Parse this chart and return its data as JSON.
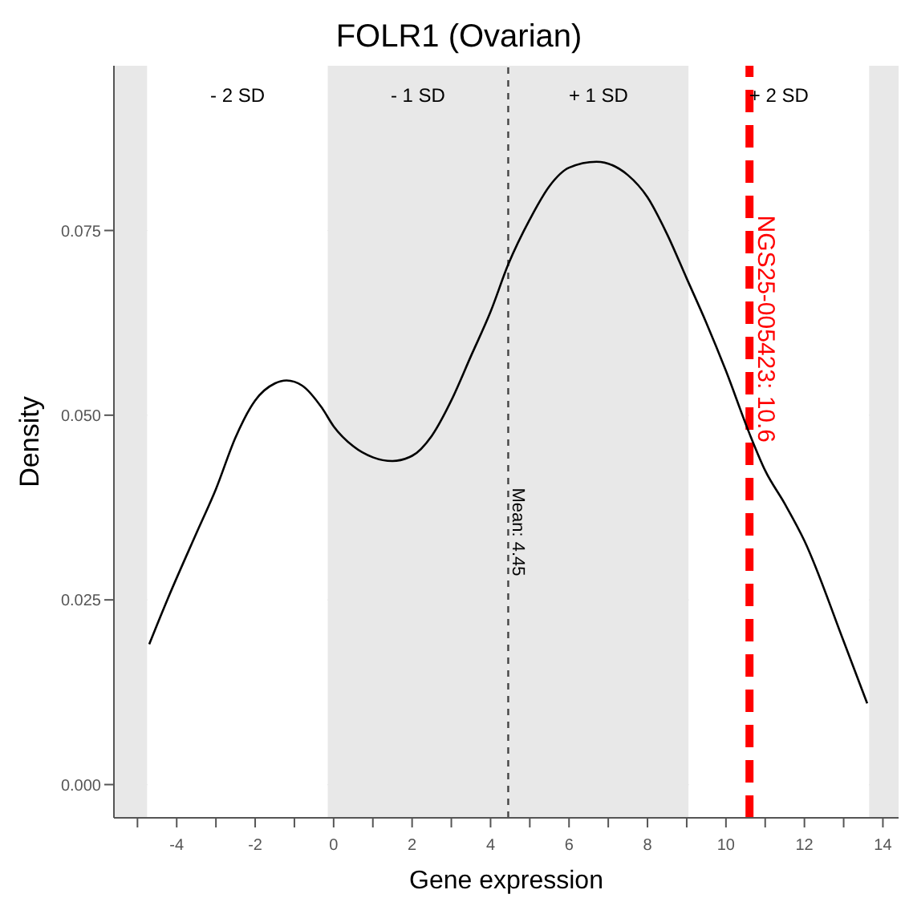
{
  "chart_data": {
    "type": "line",
    "title": "FOLR1 (Ovarian)",
    "xlabel": "Gene expression",
    "ylabel": "Density",
    "x": [
      -4.7,
      -4.24,
      -3.5,
      -3,
      -2.5,
      -2,
      -1.5,
      -1.2,
      -0.8,
      -0.3,
      0,
      0.5,
      1,
      1.5,
      2,
      2.5,
      3,
      3.5,
      4,
      4.45,
      5,
      5.5,
      6,
      6.7,
      7.5,
      8,
      8.5,
      9,
      9.5,
      10,
      10.6,
      11,
      11.5,
      12,
      13,
      13.6
    ],
    "series": [
      {
        "color": "#000000",
        "values": [
          0.019,
          0.025,
          0.034,
          0.04,
          0.047,
          0.052,
          0.0543,
          0.0547,
          0.054,
          0.051,
          0.0485,
          0.0458,
          0.0443,
          0.0438,
          0.0445,
          0.0472,
          0.052,
          0.058,
          0.064,
          0.0704,
          0.0765,
          0.081,
          0.0835,
          0.0843,
          0.0825,
          0.0795,
          0.0745,
          0.0685,
          0.0625,
          0.056,
          0.0475,
          0.0425,
          0.038,
          0.033,
          0.0194,
          0.011
        ]
      }
    ],
    "xlim": [
      -5.6,
      14.4
    ],
    "ylim": [
      -0.0045,
      0.0973
    ],
    "xticks": [
      {
        "value": -5,
        "label": null
      },
      -4,
      {
        "value": -3,
        "label": null
      },
      -2,
      {
        "value": -1,
        "label": null
      },
      0,
      {
        "value": 1,
        "label": null
      },
      2,
      {
        "value": 3,
        "label": null
      },
      4,
      {
        "value": 5,
        "label": null
      },
      6,
      {
        "value": 7,
        "label": null
      },
      8,
      {
        "value": 9,
        "label": null
      },
      10,
      {
        "value": 11,
        "label": null
      },
      12,
      {
        "value": 13,
        "label": null
      },
      14
    ],
    "yticks": [
      {
        "value": 0,
        "label": "0.000"
      },
      {
        "value": 0.025,
        "label": "0.025"
      },
      {
        "value": 0.05,
        "label": "0.050"
      },
      {
        "value": 0.075,
        "label": "0.075"
      }
    ],
    "bands": [
      {
        "axis": "x",
        "from": -5.6,
        "to": -4.75,
        "label": null,
        "color": "#e8e8e8"
      },
      {
        "axis": "x",
        "from": -4.75,
        "to": -0.15,
        "label": "- 2 SD",
        "color": "#ffffff"
      },
      {
        "axis": "x",
        "from": -0.15,
        "to": 4.45,
        "label": "- 1 SD",
        "color": "#e8e8e8"
      },
      {
        "axis": "x",
        "from": 4.45,
        "to": 9.05,
        "label": "+ 1 SD",
        "color": "#e8e8e8"
      },
      {
        "axis": "x",
        "from": 9.05,
        "to": 13.65,
        "label": "+ 2 SD",
        "color": "#ffffff"
      },
      {
        "axis": "x",
        "from": 13.65,
        "to": 14.4,
        "label": null,
        "color": "#e8e8e8"
      }
    ],
    "ref_lines": [
      {
        "axis": "x",
        "value": 4.45,
        "label": "Mean: 4.45",
        "color": "#444444",
        "line_style": "dotted"
      },
      {
        "axis": "x",
        "value": 10.6,
        "label": "NGS25-005423: 10.6",
        "color": "#ff0000",
        "line_style": "dashed"
      }
    ],
    "grid": true,
    "marker": "none",
    "line_style": "solid"
  }
}
